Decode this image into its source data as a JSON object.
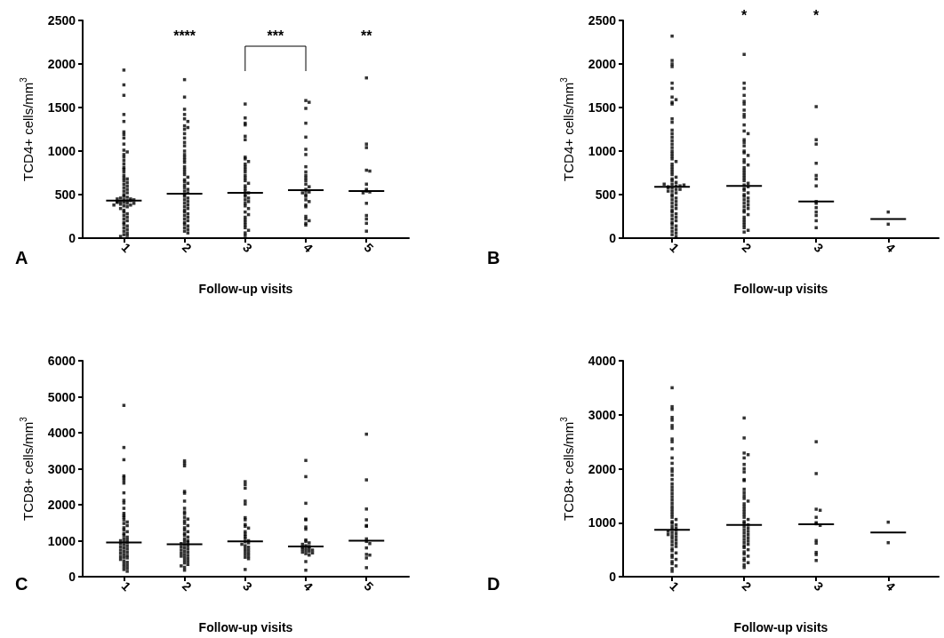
{
  "chart_data": [
    {
      "type": "scatter",
      "title": "A",
      "xlabel": "Follow-up visits",
      "ylabel": "TCD4+ cells/mm$^{3}$",
      "categories": [
        "1",
        "2",
        "3",
        "4",
        "5"
      ],
      "ylim": [
        0,
        2500
      ],
      "yticks": [
        0,
        500,
        1000,
        1500,
        2000,
        2500
      ],
      "grid": false,
      "marker": "square",
      "annotations": [
        "****",
        "***",
        "**"
      ],
      "series": [
        {
          "color": "#000000",
          "x": [
            "1",
            "1",
            "1",
            "1",
            "1",
            "1",
            "1",
            "1",
            "1",
            "1",
            "1",
            "1",
            "1",
            "1",
            "1",
            "1",
            "1",
            "1",
            "1",
            "1",
            "1",
            "1",
            "1",
            "1",
            "1",
            "1",
            "1",
            "1",
            "1",
            "1",
            "1",
            "1",
            "1",
            "1",
            "1",
            "1",
            "1",
            "1",
            "1",
            "1",
            "1",
            "1",
            "1",
            "1",
            "1",
            "1",
            "1",
            "1",
            "1",
            "1",
            "1",
            "1",
            "1",
            "1",
            "1",
            "1",
            "1",
            "1",
            "1",
            "1",
            "1",
            "1",
            "1",
            "1",
            "1",
            "1",
            "1",
            "1",
            "2",
            "2",
            "2",
            "2",
            "2",
            "2",
            "2",
            "2",
            "2",
            "2",
            "2",
            "2",
            "2",
            "2",
            "2",
            "2",
            "2",
            "2",
            "2",
            "2",
            "2",
            "2",
            "2",
            "2",
            "2",
            "2",
            "2",
            "2",
            "2",
            "2",
            "2",
            "2",
            "2",
            "2",
            "2",
            "2",
            "2",
            "2",
            "2",
            "2",
            "2",
            "2",
            "2",
            "2",
            "2",
            "2",
            "2",
            "2",
            "2",
            "2",
            "2",
            "2",
            "2",
            "2",
            "3",
            "3",
            "3",
            "3",
            "3",
            "3",
            "3",
            "3",
            "3",
            "3",
            "3",
            "3",
            "3",
            "3",
            "3",
            "3",
            "3",
            "3",
            "3",
            "3",
            "3",
            "3",
            "3",
            "3",
            "3",
            "3",
            "3",
            "3",
            "3",
            "3",
            "3",
            "3",
            "3",
            "3",
            "3",
            "3",
            "3",
            "3",
            "3",
            "4",
            "4",
            "4",
            "4",
            "4",
            "4",
            "4",
            "4",
            "4",
            "4",
            "4",
            "4",
            "4",
            "4",
            "4",
            "4",
            "4",
            "4",
            "4",
            "4",
            "4",
            "4",
            "4",
            "4",
            "4",
            "4",
            "4",
            "4",
            "4",
            "5",
            "5",
            "5",
            "5",
            "5",
            "5",
            "5",
            "5",
            "5",
            "5",
            "5",
            "5",
            "5",
            "5",
            "5"
          ],
          "values": [
            1930,
            1760,
            1640,
            1420,
            1340,
            1220,
            1190,
            1150,
            1080,
            1010,
            990,
            960,
            930,
            890,
            850,
            810,
            790,
            760,
            720,
            690,
            680,
            660,
            640,
            620,
            600,
            580,
            560,
            540,
            520,
            500,
            480,
            470,
            460,
            450,
            440,
            430,
            420,
            410,
            400,
            390,
            380,
            370,
            360,
            340,
            320,
            300,
            280,
            260,
            240,
            220,
            200,
            180,
            160,
            140,
            120,
            100,
            80,
            60,
            40,
            30,
            20,
            450,
            430,
            410,
            420,
            440,
            400,
            380,
            1820,
            1620,
            1480,
            1420,
            1370,
            1340,
            1290,
            1270,
            1250,
            1200,
            1150,
            1100,
            1060,
            1000,
            960,
            930,
            900,
            870,
            820,
            790,
            760,
            730,
            700,
            670,
            650,
            630,
            610,
            580,
            560,
            540,
            520,
            500,
            480,
            460,
            440,
            420,
            400,
            380,
            360,
            340,
            320,
            300,
            280,
            260,
            240,
            220,
            200,
            180,
            160,
            140,
            120,
            100,
            80,
            60,
            1540,
            1380,
            1320,
            1300,
            1170,
            1130,
            930,
            910,
            880,
            850,
            820,
            790,
            760,
            720,
            690,
            660,
            630,
            600,
            570,
            540,
            520,
            500,
            480,
            460,
            440,
            420,
            400,
            370,
            340,
            300,
            270,
            240,
            210,
            180,
            150,
            120,
            90,
            60,
            30,
            1580,
            1560,
            1490,
            1320,
            1160,
            1020,
            960,
            820,
            760,
            720,
            690,
            660,
            620,
            590,
            560,
            540,
            530,
            520,
            500,
            480,
            440,
            420,
            380,
            360,
            250,
            220,
            200,
            170,
            150,
            1840,
            1080,
            1040,
            780,
            770,
            620,
            560,
            540,
            530,
            520,
            400,
            260,
            220,
            170,
            80
          ]
        },
        {
          "type": "box",
          "color": "#000000",
          "boxes": [
            {
              "low": 430,
              "q1": 430,
              "median": 430,
              "q3": 430,
              "high": 430
            },
            {
              "low": 510,
              "q1": 510,
              "median": 510,
              "q3": 510,
              "high": 510
            },
            {
              "low": 520,
              "q1": 520,
              "median": 520,
              "q3": 520,
              "high": 520
            },
            {
              "low": 550,
              "q1": 550,
              "median": 550,
              "q3": 550,
              "high": 550
            },
            {
              "low": 540,
              "q1": 540,
              "median": 540,
              "q3": 540,
              "high": 540
            }
          ]
        }
      ]
    },
    {
      "type": "scatter",
      "title": "B",
      "xlabel": "Follow-up visits",
      "ylabel": "TCD4+ cells/mm$^{3}$",
      "categories": [
        "1",
        "2",
        "3",
        "4"
      ],
      "ylim": [
        0,
        2500
      ],
      "yticks": [
        0,
        500,
        1000,
        1500,
        2000,
        2500
      ],
      "grid": false,
      "marker": "square",
      "annotations": [
        "*",
        "*"
      ],
      "series": [
        {
          "color": "#000000",
          "x": [
            "1",
            "1",
            "1",
            "1",
            "1",
            "1",
            "1",
            "1",
            "1",
            "1",
            "1",
            "1",
            "1",
            "1",
            "1",
            "1",
            "1",
            "1",
            "1",
            "1",
            "1",
            "1",
            "1",
            "1",
            "1",
            "1",
            "1",
            "1",
            "1",
            "1",
            "1",
            "1",
            "1",
            "1",
            "1",
            "1",
            "1",
            "1",
            "1",
            "1",
            "1",
            "1",
            "1",
            "1",
            "1",
            "1",
            "1",
            "1",
            "1",
            "1",
            "1",
            "1",
            "1",
            "1",
            "1",
            "1",
            "1",
            "1",
            "1",
            "1",
            "1",
            "1",
            "1",
            "1",
            "1",
            "1",
            "1",
            "1",
            "1",
            "1",
            "2",
            "2",
            "2",
            "2",
            "2",
            "2",
            "2",
            "2",
            "2",
            "2",
            "2",
            "2",
            "2",
            "2",
            "2",
            "2",
            "2",
            "2",
            "2",
            "2",
            "2",
            "2",
            "2",
            "2",
            "2",
            "2",
            "2",
            "2",
            "2",
            "2",
            "2",
            "2",
            "2",
            "2",
            "2",
            "2",
            "2",
            "2",
            "2",
            "2",
            "2",
            "2",
            "2",
            "2",
            "2",
            "2",
            "2",
            "2",
            "2",
            "2",
            "2",
            "2",
            "3",
            "3",
            "3",
            "3",
            "3",
            "3",
            "3",
            "3",
            "3",
            "3",
            "3",
            "3",
            "3",
            "3",
            "4",
            "4"
          ],
          "values": [
            2320,
            2040,
            2000,
            1970,
            1780,
            1720,
            1620,
            1590,
            1560,
            1540,
            1370,
            1330,
            1240,
            1200,
            1160,
            1120,
            1080,
            1040,
            1000,
            970,
            940,
            910,
            880,
            850,
            820,
            790,
            760,
            730,
            700,
            680,
            660,
            640,
            620,
            600,
            590,
            580,
            560,
            540,
            520,
            500,
            480,
            460,
            440,
            420,
            400,
            380,
            360,
            340,
            320,
            300,
            280,
            260,
            240,
            220,
            200,
            180,
            160,
            140,
            120,
            100,
            80,
            60,
            40,
            20,
            600,
            580,
            620,
            560,
            540,
            610,
            2110,
            1780,
            1720,
            1640,
            1570,
            1540,
            1470,
            1420,
            1390,
            1300,
            1230,
            1200,
            1130,
            1100,
            1060,
            1000,
            980,
            950,
            900,
            870,
            840,
            810,
            780,
            750,
            720,
            690,
            660,
            630,
            610,
            590,
            570,
            550,
            520,
            500,
            480,
            460,
            440,
            420,
            400,
            380,
            360,
            340,
            320,
            300,
            270,
            240,
            210,
            180,
            150,
            120,
            90,
            70,
            1510,
            1130,
            1080,
            860,
            720,
            680,
            600,
            420,
            400,
            350,
            300,
            260,
            200,
            120,
            300,
            160
          ]
        },
        {
          "type": "box",
          "color": "#000000",
          "boxes": [
            {
              "low": 590,
              "q1": 590,
              "median": 590,
              "q3": 590,
              "high": 590
            },
            {
              "low": 600,
              "q1": 600,
              "median": 600,
              "q3": 600,
              "high": 600
            },
            {
              "low": 420,
              "q1": 420,
              "median": 420,
              "q3": 420,
              "high": 420
            },
            {
              "low": 220,
              "q1": 220,
              "median": 220,
              "q3": 220,
              "high": 220
            }
          ]
        }
      ]
    },
    {
      "type": "scatter",
      "title": "C",
      "xlabel": "Follow-up visits",
      "ylabel": "TCD8+ cells/mm$^{3}$",
      "categories": [
        "1",
        "2",
        "3",
        "4",
        "5"
      ],
      "ylim": [
        0,
        6000
      ],
      "yticks": [
        0,
        1000,
        2000,
        3000,
        4000,
        5000,
        6000
      ],
      "grid": false,
      "marker": "square",
      "series": [
        {
          "color": "#000000",
          "x": [
            "1",
            "1",
            "1",
            "1",
            "1",
            "1",
            "1",
            "1",
            "1",
            "1",
            "1",
            "1",
            "1",
            "1",
            "1",
            "1",
            "1",
            "1",
            "1",
            "1",
            "1",
            "1",
            "1",
            "1",
            "1",
            "1",
            "1",
            "1",
            "1",
            "1",
            "1",
            "1",
            "1",
            "1",
            "1",
            "1",
            "1",
            "1",
            "1",
            "1",
            "1",
            "1",
            "1",
            "1",
            "1",
            "1",
            "1",
            "1",
            "1",
            "1",
            "1",
            "1",
            "1",
            "2",
            "2",
            "2",
            "2",
            "2",
            "2",
            "2",
            "2",
            "2",
            "2",
            "2",
            "2",
            "2",
            "2",
            "2",
            "2",
            "2",
            "2",
            "2",
            "2",
            "2",
            "2",
            "2",
            "2",
            "2",
            "2",
            "2",
            "2",
            "2",
            "2",
            "2",
            "2",
            "2",
            "2",
            "2",
            "2",
            "2",
            "2",
            "2",
            "2",
            "2",
            "2",
            "2",
            "2",
            "2",
            "2",
            "3",
            "3",
            "3",
            "3",
            "3",
            "3",
            "3",
            "3",
            "3",
            "3",
            "3",
            "3",
            "3",
            "3",
            "3",
            "3",
            "3",
            "3",
            "3",
            "3",
            "3",
            "3",
            "3",
            "3",
            "3",
            "3",
            "3",
            "3",
            "3",
            "4",
            "4",
            "4",
            "4",
            "4",
            "4",
            "4",
            "4",
            "4",
            "4",
            "4",
            "4",
            "4",
            "4",
            "4",
            "4",
            "4",
            "4",
            "4",
            "4",
            "4",
            "4",
            "4",
            "4",
            "4",
            "4",
            "5",
            "5",
            "5",
            "5",
            "5",
            "5",
            "5",
            "5",
            "5",
            "5",
            "5",
            "5",
            "5",
            "5"
          ],
          "values": [
            4760,
            3590,
            3250,
            2800,
            2750,
            2680,
            2600,
            2330,
            2120,
            2050,
            1900,
            1760,
            1700,
            1650,
            1580,
            1520,
            1480,
            1420,
            1360,
            1300,
            1250,
            1200,
            1150,
            1100,
            1060,
            1020,
            1000,
            980,
            950,
            920,
            890,
            860,
            830,
            800,
            770,
            740,
            710,
            680,
            650,
            620,
            590,
            560,
            540,
            520,
            480,
            440,
            400,
            360,
            320,
            280,
            240,
            200,
            150,
            3220,
            3150,
            3080,
            2370,
            2320,
            2100,
            1900,
            1800,
            1750,
            1650,
            1600,
            1550,
            1480,
            1420,
            1360,
            1300,
            1250,
            1200,
            1150,
            1100,
            1050,
            1000,
            980,
            950,
            920,
            890,
            860,
            830,
            800,
            770,
            740,
            710,
            680,
            650,
            620,
            590,
            570,
            540,
            500,
            460,
            420,
            380,
            340,
            300,
            260,
            180,
            2640,
            2560,
            2460,
            2100,
            2020,
            1640,
            1580,
            1450,
            1400,
            1350,
            1250,
            1180,
            1120,
            1060,
            1000,
            970,
            940,
            900,
            860,
            820,
            780,
            740,
            700,
            660,
            620,
            580,
            540,
            500,
            200,
            3230,
            2780,
            2040,
            1600,
            1580,
            1380,
            1320,
            1020,
            980,
            940,
            900,
            860,
            840,
            820,
            800,
            780,
            760,
            740,
            720,
            700,
            680,
            660,
            640,
            600,
            420,
            180,
            3960,
            2690,
            1880,
            1580,
            1420,
            1400,
            1050,
            980,
            920,
            800,
            620,
            600,
            520,
            250
          ]
        },
        {
          "type": "box",
          "color": "#000000",
          "boxes": [
            {
              "low": 950,
              "q1": 950,
              "median": 950,
              "q3": 950,
              "high": 950
            },
            {
              "low": 900,
              "q1": 900,
              "median": 900,
              "q3": 900,
              "high": 900
            },
            {
              "low": 980,
              "q1": 980,
              "median": 980,
              "q3": 980,
              "high": 980
            },
            {
              "low": 840,
              "q1": 840,
              "median": 840,
              "q3": 840,
              "high": 840
            },
            {
              "low": 1000,
              "q1": 1000,
              "median": 1000,
              "q3": 1000,
              "high": 1000
            }
          ]
        }
      ]
    },
    {
      "type": "scatter",
      "title": "D",
      "xlabel": "Follow-up visits",
      "ylabel": "TCD8+ cells/mm$^{3}$",
      "categories": [
        "1",
        "2",
        "3",
        "4"
      ],
      "ylim": [
        0,
        4000
      ],
      "yticks": [
        0,
        1000,
        2000,
        3000,
        4000
      ],
      "grid": false,
      "marker": "square",
      "series": [
        {
          "color": "#000000",
          "x": [
            "1",
            "1",
            "1",
            "1",
            "1",
            "1",
            "1",
            "1",
            "1",
            "1",
            "1",
            "1",
            "1",
            "1",
            "1",
            "1",
            "1",
            "1",
            "1",
            "1",
            "1",
            "1",
            "1",
            "1",
            "1",
            "1",
            "1",
            "1",
            "1",
            "1",
            "1",
            "1",
            "1",
            "1",
            "1",
            "1",
            "1",
            "1",
            "1",
            "1",
            "1",
            "1",
            "1",
            "1",
            "1",
            "1",
            "1",
            "1",
            "1",
            "1",
            "1",
            "1",
            "1",
            "1",
            "1",
            "1",
            "1",
            "1",
            "1",
            "2",
            "2",
            "2",
            "2",
            "2",
            "2",
            "2",
            "2",
            "2",
            "2",
            "2",
            "2",
            "2",
            "2",
            "2",
            "2",
            "2",
            "2",
            "2",
            "2",
            "2",
            "2",
            "2",
            "2",
            "2",
            "2",
            "2",
            "2",
            "2",
            "2",
            "2",
            "2",
            "2",
            "2",
            "2",
            "2",
            "2",
            "2",
            "2",
            "2",
            "2",
            "2",
            "2",
            "2",
            "2",
            "2",
            "2",
            "2",
            "3",
            "3",
            "3",
            "3",
            "3",
            "3",
            "3",
            "3",
            "3",
            "3",
            "3",
            "3",
            "3",
            "4",
            "4"
          ],
          "values": [
            3500,
            3150,
            3100,
            2950,
            2900,
            2800,
            2750,
            2550,
            2500,
            2370,
            2200,
            2100,
            2000,
            1950,
            1880,
            1800,
            1720,
            1660,
            1600,
            1540,
            1480,
            1420,
            1360,
            1300,
            1250,
            1200,
            1150,
            1100,
            1060,
            1020,
            990,
            960,
            930,
            900,
            880,
            860,
            840,
            820,
            800,
            780,
            760,
            740,
            710,
            680,
            650,
            620,
            590,
            560,
            520,
            480,
            440,
            400,
            360,
            320,
            280,
            240,
            200,
            150,
            100,
            2940,
            2570,
            2290,
            2260,
            2200,
            2080,
            2000,
            1940,
            1800,
            1780,
            1620,
            1560,
            1500,
            1450,
            1400,
            1350,
            1300,
            1250,
            1200,
            1150,
            1100,
            1060,
            1020,
            990,
            960,
            930,
            900,
            870,
            840,
            810,
            780,
            750,
            720,
            690,
            660,
            630,
            600,
            570,
            540,
            500,
            460,
            420,
            380,
            340,
            300,
            260,
            220,
            170,
            2500,
            1910,
            1250,
            1230,
            1100,
            1000,
            980,
            950,
            670,
            620,
            450,
            410,
            300,
            1010,
            630
          ]
        },
        {
          "type": "box",
          "color": "#000000",
          "boxes": [
            {
              "low": 870,
              "q1": 870,
              "median": 870,
              "q3": 870,
              "high": 870
            },
            {
              "low": 960,
              "q1": 960,
              "median": 960,
              "q3": 960,
              "high": 960
            },
            {
              "low": 970,
              "q1": 970,
              "median": 970,
              "q3": 970,
              "high": 970
            },
            {
              "low": 820,
              "q1": 820,
              "median": 820,
              "q3": 820,
              "high": 820
            }
          ]
        }
      ]
    }
  ]
}
